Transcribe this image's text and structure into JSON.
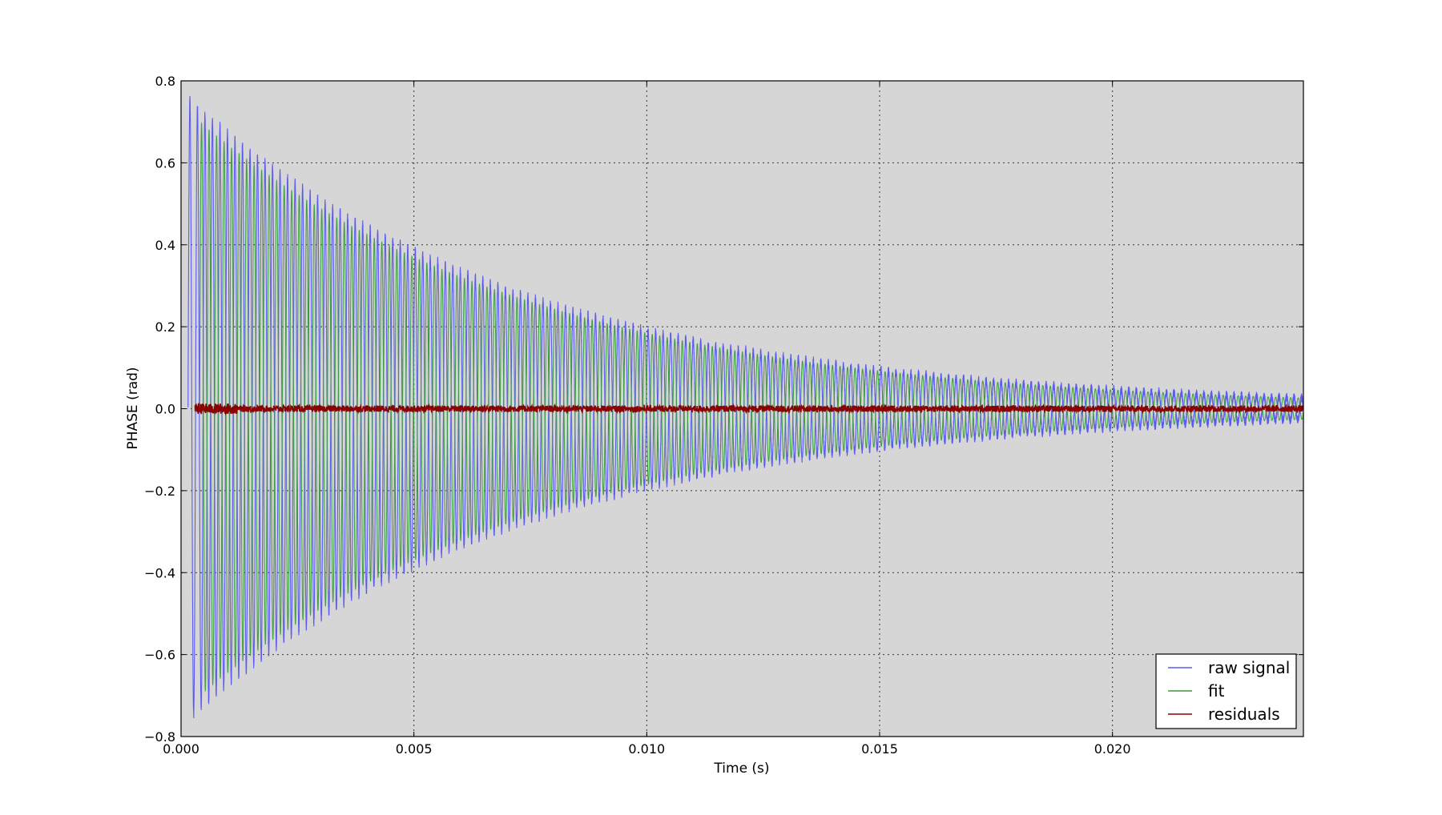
{
  "chart_data": {
    "type": "line",
    "title": "",
    "xlabel": "Time (s)",
    "ylabel": "PHASE (rad)",
    "xlim": [
      0.0,
      0.0241
    ],
    "ylim": [
      -0.8,
      0.8
    ],
    "x_ticks": [
      0.0,
      0.005,
      0.01,
      0.015,
      0.02
    ],
    "x_tick_labels": [
      "0.000",
      "0.005",
      "0.010",
      "0.015",
      "0.020"
    ],
    "y_ticks": [
      -0.8,
      -0.6,
      -0.4,
      -0.2,
      0.0,
      0.2,
      0.4,
      0.6,
      0.8
    ],
    "y_tick_labels": [
      "−0.8",
      "−0.6",
      "−0.4",
      "−0.2",
      "0.0",
      "0.2",
      "0.4",
      "0.6",
      "0.8"
    ],
    "grid": true,
    "legend_position": "bottom-right",
    "colors": {
      "plot_background": "#d6d6d6",
      "raw_signal": "#5b5bf0",
      "fit": "#3a9a3a",
      "residuals": "#8b0000"
    },
    "series": [
      {
        "name": "raw signal",
        "color": "#5b5bf0",
        "envelope": {
          "amplitude": 0.76,
          "decay_time_constant": 0.0072,
          "start_time": 0.00015
        },
        "oscillation_frequency_hz": 6200,
        "x": [
          0.00015,
          0.0002,
          0.0003,
          0.0004,
          0.0005,
          0.005,
          0.01,
          0.015,
          0.02,
          0.0241
        ],
        "peak_values": [
          0.76,
          -0.74,
          0.72,
          -0.72,
          0.71,
          0.32,
          0.12,
          0.045,
          0.015,
          0.01
        ]
      },
      {
        "name": "fit",
        "color": "#3a9a3a",
        "envelope": {
          "amplitude": 0.7,
          "decay_time_constant": 0.0072,
          "start_time": 0.0004
        },
        "oscillation_frequency_hz": 6200,
        "x": [
          0.0004,
          0.005,
          0.01,
          0.015,
          0.02,
          0.0241
        ],
        "peak_values": [
          0.7,
          0.31,
          0.13,
          0.04,
          0.012,
          0.004
        ]
      },
      {
        "name": "residuals",
        "color": "#8b0000",
        "x": [
          0.0003,
          0.005,
          0.01,
          0.015,
          0.02,
          0.0241
        ],
        "values": [
          0.0,
          0.0,
          0.0,
          0.0,
          0.0,
          0.0
        ],
        "noise_amplitude": 0.008
      }
    ]
  }
}
